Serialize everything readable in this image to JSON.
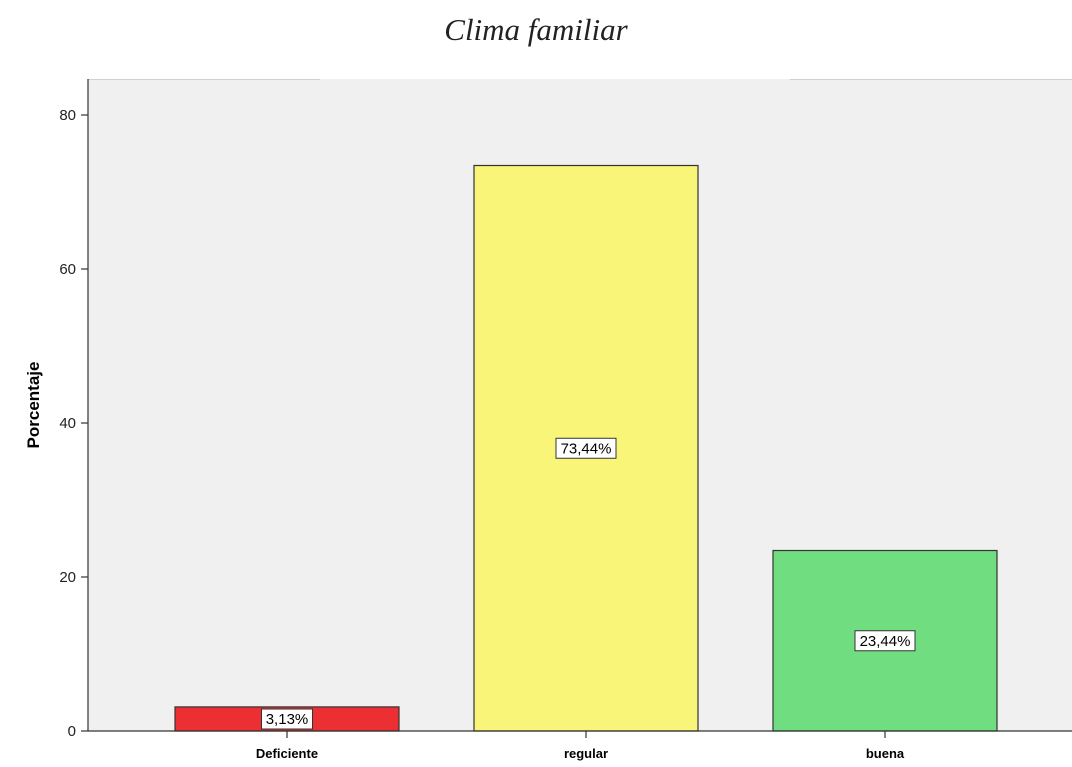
{
  "chart_data": {
    "type": "bar",
    "title": "Clima familiar",
    "xlabel": "",
    "ylabel": "Porcentaje",
    "ylim": [
      0,
      80
    ],
    "yticks": [
      0,
      20,
      40,
      60,
      80
    ],
    "categories": [
      "Deficiente",
      "regular",
      "buena"
    ],
    "values": [
      3.13,
      73.44,
      23.44
    ],
    "value_labels": [
      "3,13%",
      "73,44%",
      "23,44%"
    ],
    "colors": [
      "#ec2f33",
      "#f9f578",
      "#70dd80"
    ],
    "plot_background": "#f0f0f0",
    "grid": false,
    "legend": "none"
  }
}
